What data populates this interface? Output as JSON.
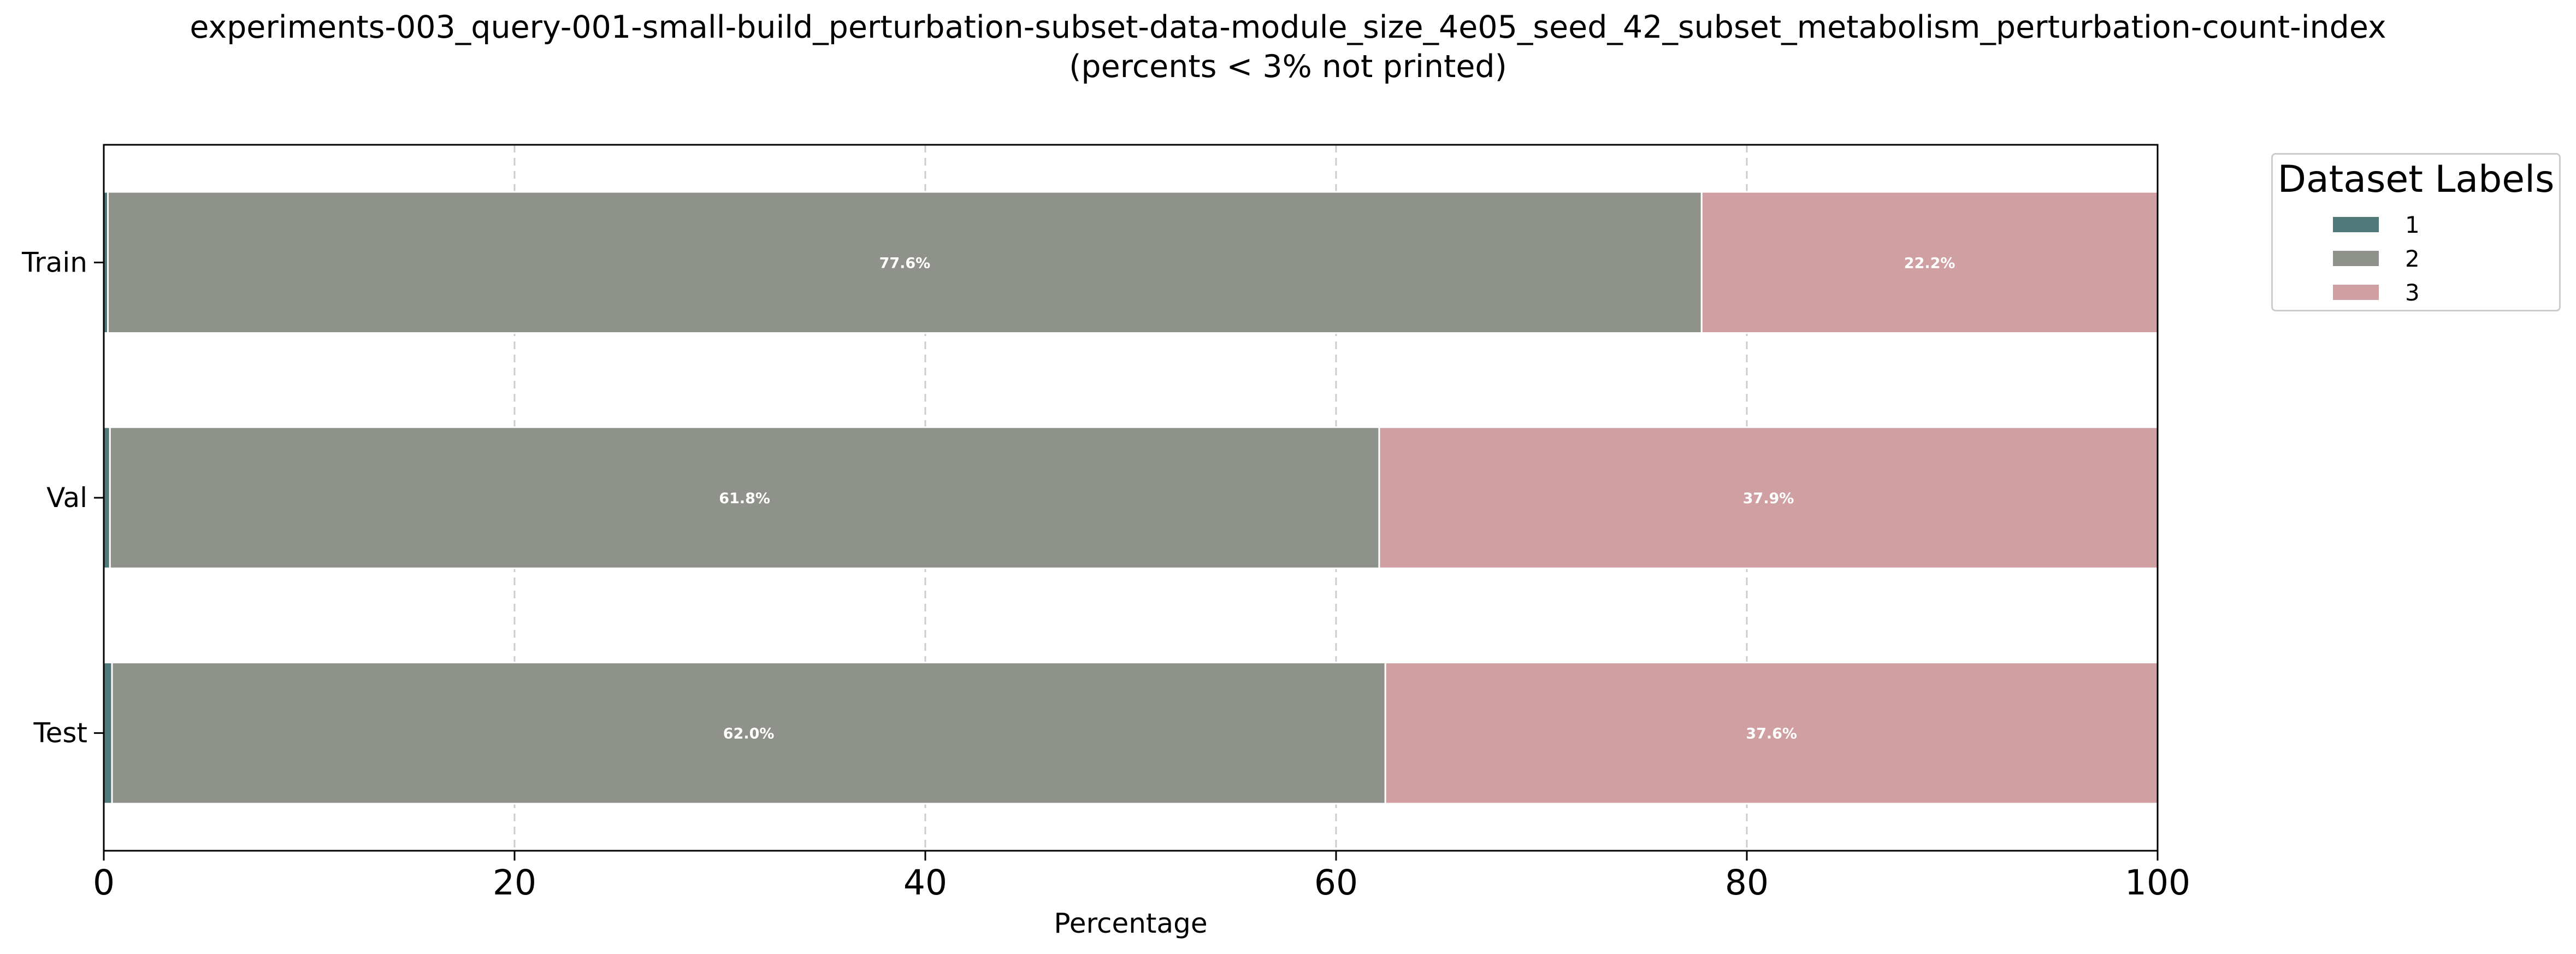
{
  "title": "experiments-003_query-001-small-build_perturbation-subset-data-module_size_4e05_seed_42_subset_metabolism_perturbation-count-index",
  "subtitle": "(percents < 3% not printed)",
  "chart_data": {
    "type": "bar",
    "orientation": "horizontal",
    "stacked": true,
    "categories": [
      "Train",
      "Val",
      "Test"
    ],
    "series": [
      {
        "name": "1",
        "color": "#52797a",
        "values": [
          0.2,
          0.3,
          0.4
        ]
      },
      {
        "name": "2",
        "color": "#8f928a",
        "values": [
          77.6,
          61.8,
          62.0
        ]
      },
      {
        "name": "3",
        "color": "#d09fa1",
        "values": [
          22.2,
          37.9,
          37.6
        ]
      }
    ],
    "printed_labels": [
      {
        "series": "2",
        "category": "Train",
        "text": "77.6%"
      },
      {
        "series": "3",
        "category": "Train",
        "text": "22.2%"
      },
      {
        "series": "2",
        "category": "Val",
        "text": "61.8%"
      },
      {
        "series": "3",
        "category": "Val",
        "text": "37.9%"
      },
      {
        "series": "2",
        "category": "Test",
        "text": "62.0%"
      },
      {
        "series": "3",
        "category": "Test",
        "text": "37.6%"
      }
    ],
    "xlabel": "Percentage",
    "ylabel": "",
    "xlim": [
      0,
      100
    ],
    "xticks": [
      "0",
      "20",
      "40",
      "60",
      "80",
      "100"
    ],
    "grid": "x-dashed",
    "legend": {
      "title": "Dataset Labels",
      "placement": "outside-top-right",
      "entries": [
        "1",
        "2",
        "3"
      ]
    }
  }
}
